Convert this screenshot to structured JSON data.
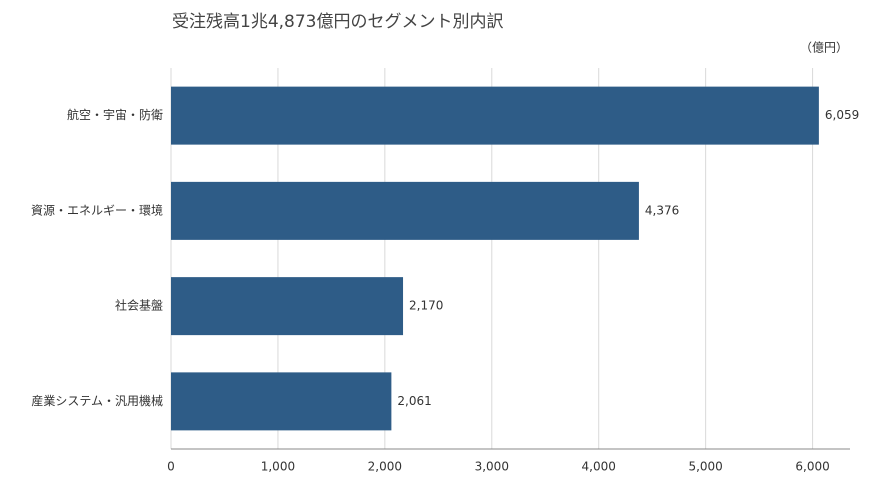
{
  "chart_data": {
    "type": "barh",
    "title": "受注残高1兆4,873億円のセグメント別内訳",
    "unit_label": "（億円）",
    "categories": [
      "航空・宇宙・防衛",
      "資源・エネルギー・環境",
      "社会基盤",
      "産業システム・汎用機械"
    ],
    "values": [
      6059,
      4376,
      2170,
      2061
    ],
    "value_labels": [
      "6,059",
      "4,376",
      "2,170",
      "2,061"
    ],
    "color": "#2e5c87",
    "xlim": [
      0,
      6350
    ],
    "xticks": [
      0,
      {
        "value": 1000,
        "label": "1,000"
      },
      {
        "value": 2000,
        "label": "2,000"
      },
      {
        "value": 3000,
        "label": "3,000"
      },
      {
        "value": 4000,
        "label": "4,000"
      },
      {
        "value": 5000,
        "label": "5,000"
      },
      {
        "value": 6000,
        "label": "6,000"
      }
    ],
    "grid": true
  }
}
